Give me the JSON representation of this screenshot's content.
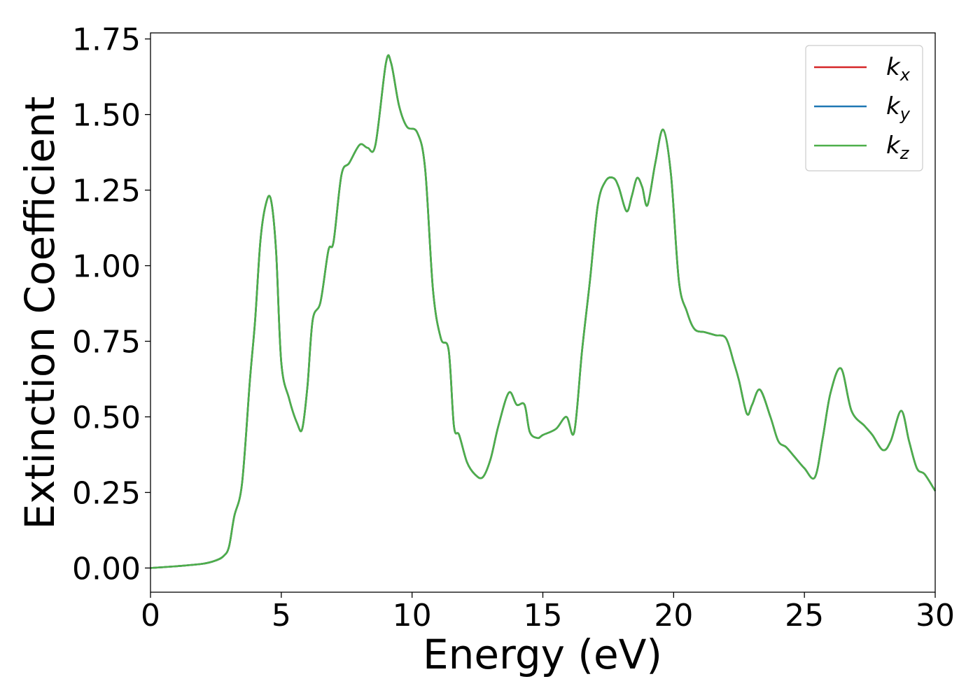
{
  "chart_data": {
    "type": "line",
    "xlabel": "Energy (eV)",
    "ylabel": "Extinction Coefficient",
    "xlim": [
      0,
      30
    ],
    "ylim": [
      -0.08,
      1.77
    ],
    "x_ticks": [
      "0",
      "5",
      "10",
      "15",
      "20",
      "25",
      "30"
    ],
    "y_ticks": [
      "0.00",
      "0.25",
      "0.50",
      "0.75",
      "1.00",
      "1.25",
      "1.50",
      "1.75"
    ],
    "grid": false,
    "legend_position": "top-right",
    "x": [
      0,
      1,
      2,
      2.5,
      2.8,
      3.0,
      3.2,
      3.5,
      3.8,
      4.0,
      4.2,
      4.4,
      4.6,
      4.8,
      5.0,
      5.3,
      5.6,
      5.8,
      6.0,
      6.2,
      6.5,
      6.8,
      7.0,
      7.3,
      7.6,
      8.0,
      8.3,
      8.6,
      9.0,
      9.2,
      9.5,
      9.8,
      10.2,
      10.5,
      10.8,
      11.1,
      11.4,
      11.6,
      11.8,
      12.1,
      12.4,
      12.7,
      13.0,
      13.3,
      13.7,
      14.0,
      14.3,
      14.5,
      14.8,
      15.0,
      15.5,
      15.9,
      16.2,
      16.5,
      16.8,
      17.1,
      17.4,
      17.7,
      17.9,
      18.2,
      18.4,
      18.6,
      18.8,
      19.0,
      19.3,
      19.6,
      19.9,
      20.2,
      20.5,
      20.8,
      21.2,
      21.6,
      22.0,
      22.3,
      22.5,
      22.8,
      23.0,
      23.3,
      23.7,
      24.0,
      24.3,
      24.6,
      25.0,
      25.4,
      25.7,
      26.0,
      26.4,
      26.8,
      27.3,
      27.6,
      28.0,
      28.3,
      28.7,
      29.0,
      29.3,
      29.6,
      30.0
    ],
    "series": [
      {
        "name": "kx",
        "color": "#d62728",
        "values": [
          0.0,
          0.006,
          0.014,
          0.025,
          0.04,
          0.07,
          0.17,
          0.28,
          0.62,
          0.82,
          1.08,
          1.2,
          1.22,
          1.05,
          0.68,
          0.56,
          0.48,
          0.46,
          0.6,
          0.82,
          0.88,
          1.05,
          1.08,
          1.3,
          1.34,
          1.4,
          1.39,
          1.4,
          1.67,
          1.67,
          1.53,
          1.46,
          1.44,
          1.32,
          0.92,
          0.76,
          0.72,
          0.47,
          0.44,
          0.35,
          0.31,
          0.3,
          0.36,
          0.47,
          0.58,
          0.54,
          0.54,
          0.45,
          0.43,
          0.44,
          0.46,
          0.5,
          0.45,
          0.72,
          0.95,
          1.2,
          1.28,
          1.29,
          1.26,
          1.18,
          1.23,
          1.29,
          1.26,
          1.2,
          1.34,
          1.45,
          1.3,
          0.95,
          0.85,
          0.79,
          0.78,
          0.77,
          0.76,
          0.68,
          0.62,
          0.51,
          0.54,
          0.59,
          0.5,
          0.42,
          0.4,
          0.37,
          0.33,
          0.3,
          0.43,
          0.58,
          0.66,
          0.52,
          0.47,
          0.44,
          0.39,
          0.42,
          0.52,
          0.42,
          0.33,
          0.31,
          0.255
        ]
      },
      {
        "name": "ky",
        "color": "#1f77b4",
        "values": [
          0.0,
          0.006,
          0.014,
          0.025,
          0.04,
          0.07,
          0.17,
          0.28,
          0.62,
          0.82,
          1.08,
          1.2,
          1.22,
          1.05,
          0.68,
          0.56,
          0.48,
          0.46,
          0.6,
          0.82,
          0.88,
          1.05,
          1.08,
          1.3,
          1.34,
          1.4,
          1.39,
          1.4,
          1.67,
          1.67,
          1.53,
          1.46,
          1.44,
          1.32,
          0.92,
          0.76,
          0.72,
          0.47,
          0.44,
          0.35,
          0.31,
          0.3,
          0.36,
          0.47,
          0.58,
          0.54,
          0.54,
          0.45,
          0.43,
          0.44,
          0.46,
          0.5,
          0.45,
          0.72,
          0.95,
          1.2,
          1.28,
          1.29,
          1.26,
          1.18,
          1.23,
          1.29,
          1.26,
          1.2,
          1.34,
          1.45,
          1.3,
          0.95,
          0.85,
          0.79,
          0.78,
          0.77,
          0.76,
          0.68,
          0.62,
          0.51,
          0.54,
          0.59,
          0.5,
          0.42,
          0.4,
          0.37,
          0.33,
          0.3,
          0.43,
          0.58,
          0.66,
          0.52,
          0.47,
          0.44,
          0.39,
          0.42,
          0.52,
          0.42,
          0.33,
          0.31,
          0.255
        ]
      },
      {
        "name": "kz",
        "color": "#4daf4a",
        "values": [
          0.0,
          0.006,
          0.014,
          0.025,
          0.04,
          0.07,
          0.17,
          0.28,
          0.62,
          0.82,
          1.08,
          1.2,
          1.22,
          1.05,
          0.68,
          0.56,
          0.48,
          0.46,
          0.6,
          0.82,
          0.88,
          1.05,
          1.08,
          1.3,
          1.34,
          1.4,
          1.39,
          1.4,
          1.67,
          1.67,
          1.53,
          1.46,
          1.44,
          1.32,
          0.92,
          0.76,
          0.72,
          0.47,
          0.44,
          0.35,
          0.31,
          0.3,
          0.36,
          0.47,
          0.58,
          0.54,
          0.54,
          0.45,
          0.43,
          0.44,
          0.46,
          0.5,
          0.45,
          0.72,
          0.95,
          1.2,
          1.28,
          1.29,
          1.26,
          1.18,
          1.23,
          1.29,
          1.26,
          1.2,
          1.34,
          1.45,
          1.3,
          0.95,
          0.85,
          0.79,
          0.78,
          0.77,
          0.76,
          0.68,
          0.62,
          0.51,
          0.54,
          0.59,
          0.5,
          0.42,
          0.4,
          0.37,
          0.33,
          0.3,
          0.43,
          0.58,
          0.66,
          0.52,
          0.47,
          0.44,
          0.39,
          0.42,
          0.52,
          0.42,
          0.33,
          0.31,
          0.255
        ]
      }
    ],
    "legend": [
      {
        "base": "k",
        "sub": "x",
        "color": "#d62728"
      },
      {
        "base": "k",
        "sub": "y",
        "color": "#1f77b4"
      },
      {
        "base": "k",
        "sub": "z",
        "color": "#4daf4a"
      }
    ]
  }
}
